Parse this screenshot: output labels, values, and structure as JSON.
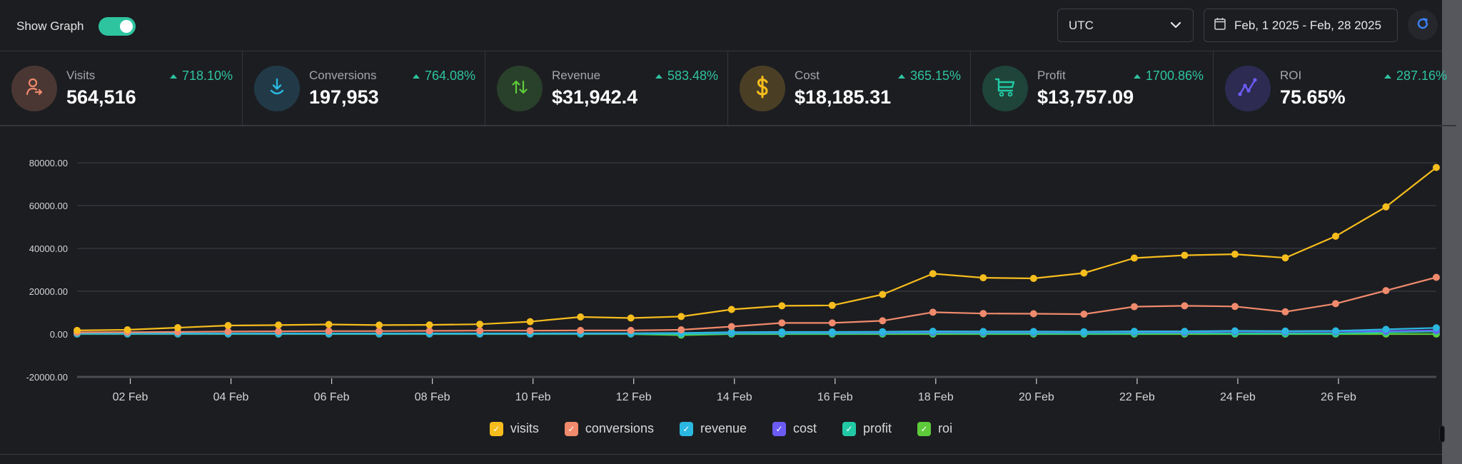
{
  "header": {
    "show_graph_label": "Show Graph",
    "show_graph_on": true,
    "timezone": "UTC",
    "date_range": "Feb, 1 2025 - Feb, 28 2025",
    "icons": {
      "timezone_dropdown": "chevron-down-icon",
      "date": "calendar-icon",
      "refresh": "refresh-icon"
    }
  },
  "stats": [
    {
      "label": "Visits",
      "value": "564,516",
      "change": "718.10%",
      "trend": "up",
      "icon": "user-arrow-icon",
      "color": "#f08a6c",
      "bg": "#4a3733"
    },
    {
      "label": "Conversions",
      "value": "197,953",
      "change": "764.08%",
      "trend": "up",
      "icon": "download-icon",
      "color": "#2bb8e0",
      "bg": "#223a48"
    },
    {
      "label": "Revenue",
      "value": "$31,942.4",
      "change": "583.48%",
      "trend": "up",
      "icon": "arrows-up-down-icon",
      "color": "#5ecb3a",
      "bg": "#29402a"
    },
    {
      "label": "Cost",
      "value": "$18,185.31",
      "change": "365.15%",
      "trend": "up",
      "icon": "dollar-icon",
      "color": "#f6bd1d",
      "bg": "#4a3f25"
    },
    {
      "label": "Profit",
      "value": "$13,757.09",
      "change": "1700.86%",
      "trend": "up",
      "icon": "cart-icon",
      "color": "#22c9a5",
      "bg": "#1f4439"
    },
    {
      "label": "ROI",
      "value": "75.65%",
      "change": "287.16%",
      "trend": "up",
      "icon": "trend-line-icon",
      "color": "#6b5cf5",
      "bg": "#2d2b52"
    }
  ],
  "chart_data": {
    "type": "line",
    "title": "",
    "xlabel": "",
    "ylabel": "",
    "ylim": [
      -20000,
      80000
    ],
    "yticks": [
      "80000.00",
      "60000.00",
      "40000.00",
      "20000.00",
      "0.00",
      "-20000.00"
    ],
    "ytick_values": [
      80000,
      60000,
      40000,
      20000,
      0,
      -20000
    ],
    "grid": true,
    "legend_position": "bottom",
    "x": [
      "01 Feb",
      "02 Feb",
      "03 Feb",
      "04 Feb",
      "05 Feb",
      "06 Feb",
      "07 Feb",
      "08 Feb",
      "09 Feb",
      "10 Feb",
      "11 Feb",
      "12 Feb",
      "13 Feb",
      "14 Feb",
      "15 Feb",
      "16 Feb",
      "17 Feb",
      "18 Feb",
      "19 Feb",
      "20 Feb",
      "21 Feb",
      "22 Feb",
      "23 Feb",
      "24 Feb",
      "25 Feb",
      "26 Feb",
      "27 Feb",
      "28 Feb"
    ],
    "xtick_labels": [
      "02 Feb",
      "04 Feb",
      "06 Feb",
      "08 Feb",
      "10 Feb",
      "12 Feb",
      "14 Feb",
      "16 Feb",
      "18 Feb",
      "20 Feb",
      "22 Feb",
      "24 Feb",
      "26 Feb"
    ],
    "series": [
      {
        "name": "visits",
        "color": "#f6bd1d",
        "values": [
          1700,
          2000,
          3000,
          4000,
          4200,
          4500,
          4200,
          4300,
          4600,
          5800,
          8000,
          7500,
          8200,
          11500,
          13200,
          13400,
          18500,
          28200,
          26300,
          26000,
          28500,
          35500,
          36800,
          37300,
          35600,
          45700,
          59400,
          77800
        ]
      },
      {
        "name": "conversions",
        "color": "#f08a6c",
        "values": [
          800,
          900,
          1000,
          1200,
          1300,
          1400,
          1400,
          1500,
          1600,
          1600,
          1700,
          1700,
          2000,
          3500,
          5200,
          5200,
          6200,
          10200,
          9600,
          9500,
          9300,
          12800,
          13200,
          12900,
          10400,
          14200,
          20300,
          26500
        ]
      },
      {
        "name": "revenue",
        "color": "#2bb8e0",
        "values": [
          300,
          300,
          300,
          300,
          300,
          300,
          300,
          300,
          300,
          300,
          400,
          400,
          500,
          900,
          1000,
          1000,
          1100,
          1300,
          1200,
          1200,
          1100,
          1300,
          1300,
          1500,
          1400,
          1500,
          2200,
          2900
        ]
      },
      {
        "name": "cost",
        "color": "#6b5cf5",
        "values": [
          200,
          200,
          200,
          200,
          200,
          200,
          200,
          200,
          200,
          200,
          300,
          300,
          500,
          700,
          800,
          800,
          800,
          900,
          900,
          900,
          900,
          1000,
          900,
          1200,
          1100,
          1200,
          1400,
          1700
        ]
      },
      {
        "name": "profit",
        "color": "#22c9a5",
        "values": [
          100,
          100,
          100,
          100,
          100,
          100,
          100,
          100,
          100,
          100,
          100,
          100,
          0,
          200,
          200,
          200,
          300,
          400,
          300,
          300,
          200,
          300,
          400,
          300,
          300,
          300,
          800,
          1200
        ]
      },
      {
        "name": "roi",
        "color": "#5ecb3a",
        "values": [
          0,
          0,
          0,
          0,
          0,
          0,
          0,
          0,
          0,
          0,
          0,
          0,
          -500,
          0,
          0,
          0,
          0,
          0,
          0,
          0,
          0,
          0,
          0,
          0,
          0,
          0,
          0,
          0
        ]
      }
    ]
  }
}
